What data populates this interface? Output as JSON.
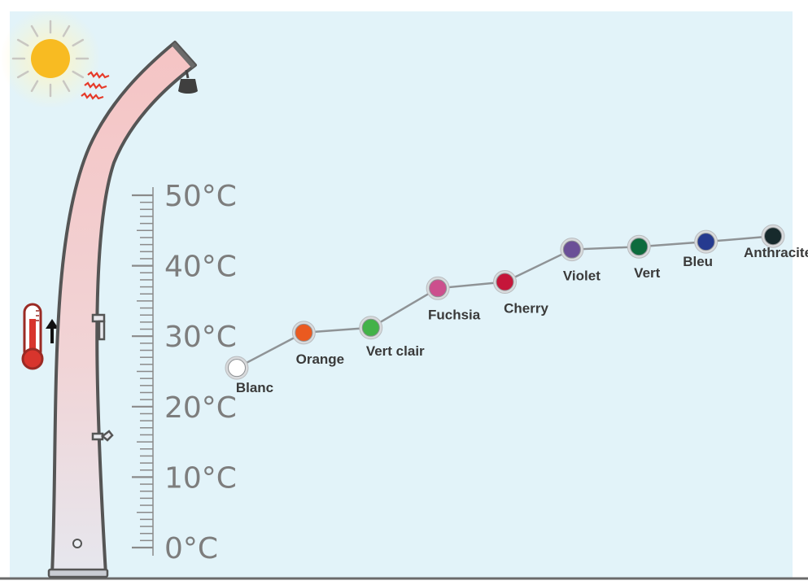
{
  "colors": {
    "background": "#e2f3f9",
    "line": "#8f9396",
    "scale": "#8a8a8a",
    "shower_fill": "#f4c9c9",
    "shower_outline": "#555555",
    "sun": "#f8bb22",
    "heat_rays": "#e63b2a",
    "thermometer": "#d8352d"
  },
  "icons": [
    "sun-icon",
    "heat-rays-icon",
    "thermometer-icon",
    "arrow-up-icon",
    "solar-shower-illustration",
    "shower-head-icon",
    "tap-icon"
  ],
  "chart_data": {
    "type": "line",
    "title": "",
    "xlabel": "",
    "ylabel": "",
    "ylim": [
      0,
      50
    ],
    "y_ticks": [
      "0°C",
      "10°C",
      "20°C",
      "30°C",
      "40°C",
      "50°C"
    ],
    "series": [
      {
        "points": [
          {
            "label": "Blanc",
            "color": "#ffffff",
            "y": 25.5
          },
          {
            "label": "Orange",
            "color": "#ea5a20",
            "y": 30.5
          },
          {
            "label": "Vert clair",
            "color": "#43b248",
            "y": 31.2
          },
          {
            "label": "Fuchsia",
            "color": "#cc4f8d",
            "y": 36.8
          },
          {
            "label": "Cherry",
            "color": "#c5163a",
            "y": 37.7
          },
          {
            "label": "Violet",
            "color": "#6b4f97",
            "y": 42.3
          },
          {
            "label": "Vert",
            "color": "#0e6b3d",
            "y": 42.7
          },
          {
            "label": "Bleu",
            "color": "#253a8f",
            "y": 43.4
          },
          {
            "label": "Anthracite",
            "color": "#172a2c",
            "y": 44.2
          }
        ]
      }
    ]
  }
}
